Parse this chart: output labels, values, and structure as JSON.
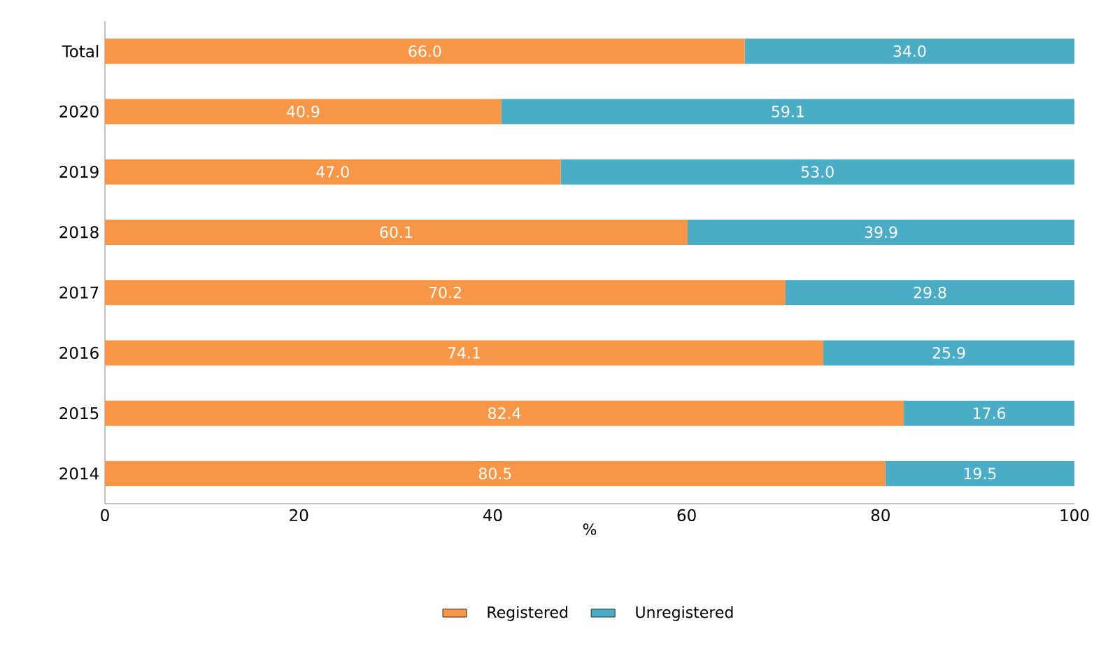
{
  "chart_data": {
    "type": "bar",
    "orientation": "horizontal",
    "stacked": true,
    "categories": [
      "Total",
      "2020",
      "2019",
      "2018",
      "2017",
      "2016",
      "2015",
      "2014"
    ],
    "series": [
      {
        "name": "Registered",
        "color": "#f79646",
        "values": [
          66.0,
          40.9,
          47.0,
          60.1,
          70.2,
          74.1,
          82.4,
          80.5
        ],
        "value_labels": [
          "66.0",
          "40.9",
          "47.0",
          "60.1",
          "70.2",
          "74.1",
          "82.4",
          "80.5"
        ]
      },
      {
        "name": "Unregistered",
        "color": "#4bacc6",
        "values": [
          34.0,
          59.1,
          53.0,
          39.9,
          29.8,
          25.9,
          17.6,
          19.5
        ],
        "value_labels": [
          "34.0",
          "59.1",
          "53.0",
          "39.9",
          "29.8",
          "25.9",
          "17.6",
          "19.5"
        ]
      }
    ],
    "xlabel": "%",
    "xlim": [
      0,
      100
    ],
    "xticks": [
      0,
      20,
      40,
      60,
      80,
      100
    ],
    "legend": "bottom",
    "grid": false
  }
}
